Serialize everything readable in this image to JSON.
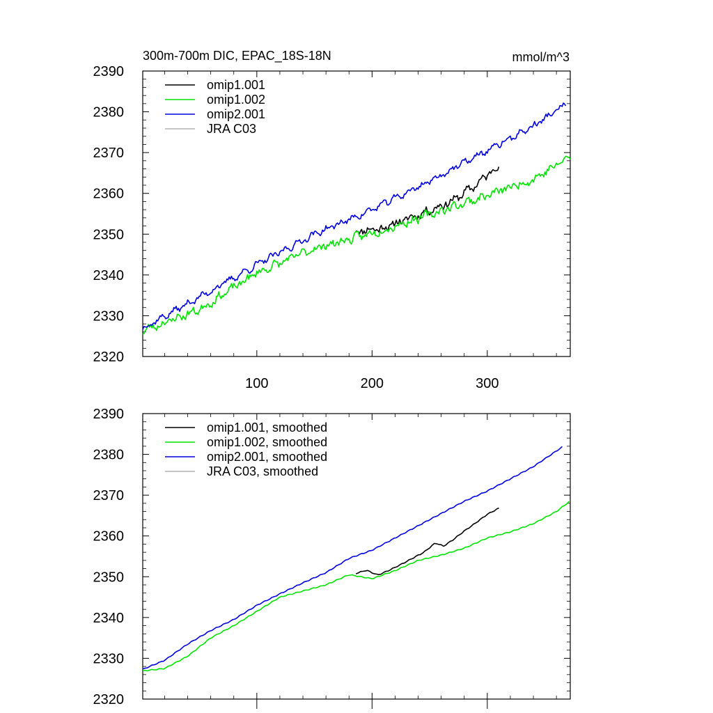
{
  "chart_data": [
    {
      "type": "line",
      "title": "300m-700m DIC, EPAC_18S-18N",
      "units": "mmol/m^3",
      "xlabel": "",
      "ylabel": "",
      "xlim": [
        1,
        372
      ],
      "ylim": [
        2320,
        2390
      ],
      "xticks": [
        100,
        200,
        300
      ],
      "xtick_labels": [
        "100",
        "200",
        "300"
      ],
      "yticks": [
        2320,
        2330,
        2340,
        2350,
        2360,
        2370,
        2380,
        2390
      ],
      "ytick_labels": [
        "2320",
        "2330",
        "2340",
        "2350",
        "2360",
        "2370",
        "2380",
        "2390"
      ],
      "legend_position": "top-left",
      "series": [
        {
          "name": "omip1.001",
          "color": "#000000",
          "x_start": 186,
          "x_end": 310,
          "trend": [
            [
              186,
              2350.8
            ],
            [
              210,
              2351.5
            ],
            [
              240,
              2354.8
            ],
            [
              270,
              2358.2
            ],
            [
              290,
              2362.0
            ],
            [
              310,
              2367.0
            ]
          ],
          "noise": 1.3,
          "seed": 11
        },
        {
          "name": "omip1.002",
          "color": "#00e400",
          "x_start": 1,
          "x_end": 372,
          "trend": [
            [
              1,
              2326.3
            ],
            [
              50,
              2331.5
            ],
            [
              100,
              2340.5
            ],
            [
              150,
              2346.5
            ],
            [
              200,
              2350.2
            ],
            [
              250,
              2354.8
            ],
            [
              300,
              2359.5
            ],
            [
              340,
              2363.5
            ],
            [
              372,
              2369.0
            ]
          ],
          "noise": 1.3,
          "seed": 23
        },
        {
          "name": "omip2.001",
          "color": "#0000e0",
          "x_start": 1,
          "x_end": 368,
          "trend": [
            [
              1,
              2327.0
            ],
            [
              50,
              2334.5
            ],
            [
              100,
              2342.5
            ],
            [
              150,
              2350.0
            ],
            [
              200,
              2356.0
            ],
            [
              250,
              2363.0
            ],
            [
              300,
              2370.5
            ],
            [
              340,
              2376.5
            ],
            [
              368,
              2381.8
            ]
          ],
          "noise": 0.9,
          "seed": 37
        },
        {
          "name": "JRA C03",
          "color": "#b3b3b3"
        }
      ]
    },
    {
      "type": "line",
      "title": "",
      "xlabel": "",
      "ylabel": "",
      "xlim": [
        1,
        372
      ],
      "ylim": [
        2320,
        2390
      ],
      "xticks": [
        100,
        200,
        300
      ],
      "yticks": [
        2320,
        2330,
        2340,
        2350,
        2360,
        2370,
        2380,
        2390
      ],
      "ytick_labels": [
        "2320",
        "2330",
        "2340",
        "2350",
        "2360",
        "2370",
        "2380",
        "2390"
      ],
      "legend_position": "top-left",
      "series": [
        {
          "name": "omip1.001, smoothed",
          "color": "#000000",
          "x_start": 186,
          "x_end": 310,
          "points": [
            [
              186,
              2350.8
            ],
            [
              195,
              2351.6
            ],
            [
              205,
              2350.4
            ],
            [
              215,
              2351.6
            ],
            [
              225,
              2353.0
            ],
            [
              235,
              2354.5
            ],
            [
              245,
              2356.0
            ],
            [
              255,
              2358.3
            ],
            [
              262,
              2357.5
            ],
            [
              270,
              2359.0
            ],
            [
              280,
              2361.2
            ],
            [
              290,
              2363.2
            ],
            [
              300,
              2365.3
            ],
            [
              310,
              2366.8
            ]
          ]
        },
        {
          "name": "omip1.002, smoothed",
          "color": "#00e400",
          "x_start": 1,
          "x_end": 372,
          "points": [
            [
              1,
              2326.9
            ],
            [
              20,
              2327.5
            ],
            [
              40,
              2330.5
            ],
            [
              60,
              2335.0
            ],
            [
              80,
              2338.0
            ],
            [
              100,
              2341.5
            ],
            [
              120,
              2345.0
            ],
            [
              140,
              2346.5
            ],
            [
              160,
              2348.0
            ],
            [
              180,
              2350.5
            ],
            [
              200,
              2349.5
            ],
            [
              220,
              2351.5
            ],
            [
              240,
              2354.0
            ],
            [
              260,
              2355.3
            ],
            [
              280,
              2357.0
            ],
            [
              300,
              2359.5
            ],
            [
              320,
              2361.0
            ],
            [
              340,
              2363.0
            ],
            [
              360,
              2366.0
            ],
            [
              372,
              2368.6
            ]
          ]
        },
        {
          "name": "omip2.001, smoothed",
          "color": "#0000e0",
          "x_start": 1,
          "x_end": 366,
          "points": [
            [
              1,
              2327.3
            ],
            [
              20,
              2329.5
            ],
            [
              40,
              2333.5
            ],
            [
              60,
              2336.8
            ],
            [
              80,
              2339.5
            ],
            [
              100,
              2343.0
            ],
            [
              120,
              2345.8
            ],
            [
              140,
              2348.5
            ],
            [
              160,
              2351.0
            ],
            [
              180,
              2354.5
            ],
            [
              200,
              2356.5
            ],
            [
              220,
              2359.5
            ],
            [
              240,
              2362.5
            ],
            [
              260,
              2365.5
            ],
            [
              280,
              2368.5
            ],
            [
              300,
              2371.0
            ],
            [
              320,
              2374.0
            ],
            [
              340,
              2377.0
            ],
            [
              366,
              2382.0
            ]
          ]
        },
        {
          "name": "JRA C03, smoothed",
          "color": "#b3b3b3"
        }
      ]
    }
  ]
}
